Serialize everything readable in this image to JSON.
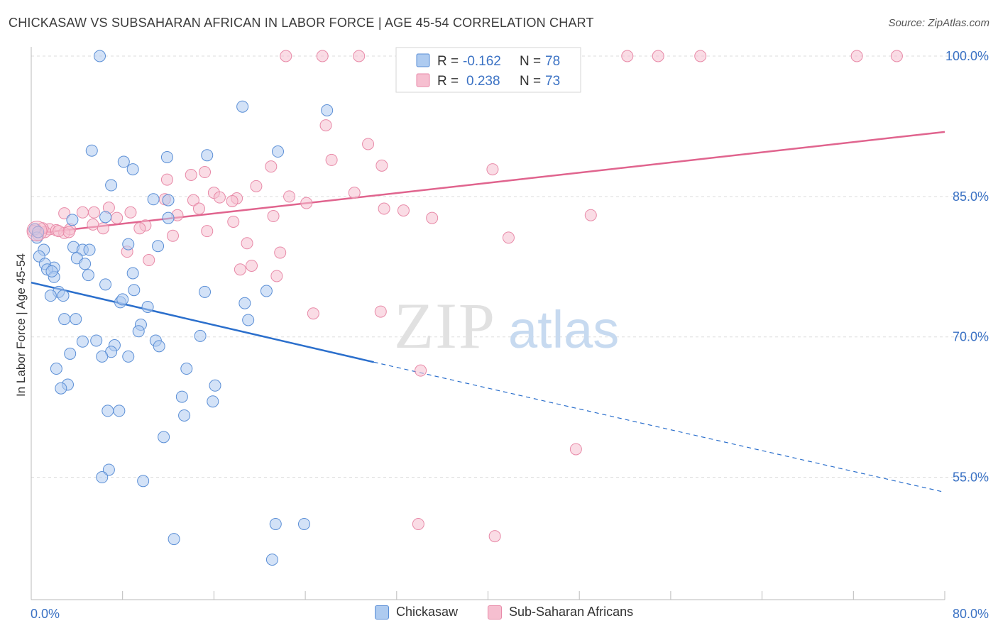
{
  "title": "CHICKASAW VS SUBSAHARAN AFRICAN IN LABOR FORCE | AGE 45-54 CORRELATION CHART",
  "source": "Source: ZipAtlas.com",
  "watermark": {
    "zip": "ZIP",
    "atlas": "atlas"
  },
  "colors": {
    "blue_fill": "#aecbf0",
    "blue_stroke": "#5b8fd6",
    "blue_line": "#2b6fcc",
    "pink_fill": "#f6bfd0",
    "pink_stroke": "#e88aa8",
    "pink_line": "#e0648e",
    "axis_text": "#3b72c4",
    "grid": "#dddddd"
  },
  "legend_top": {
    "rows": [
      {
        "r_label": "R = ",
        "r_value": "-0.162",
        "n_label": "N = ",
        "n_value": "78"
      },
      {
        "r_label": "R = ",
        "r_value": "0.238",
        "n_label": "N = ",
        "n_value": "73"
      }
    ]
  },
  "legend_bottom": {
    "items": [
      "Chickasaw",
      "Sub-Saharan Africans"
    ]
  },
  "chart_data": {
    "type": "scatter",
    "ylabel": "In Labor Force | Age 45-54",
    "xlim": [
      0,
      80
    ],
    "ylim": [
      42,
      100
    ],
    "x_tick_labels": [
      "0.0%",
      "80.0%"
    ],
    "y_ticks": [
      {
        "value": 100,
        "label": "100.0%"
      },
      {
        "value": 85,
        "label": "85.0%"
      },
      {
        "value": 70,
        "label": "70.0%"
      },
      {
        "value": 55,
        "label": "55.0%"
      }
    ],
    "grid": true,
    "series": [
      {
        "name": "Chickasaw",
        "color": "#aecbf0",
        "trend": {
          "x0": 0,
          "y0": 75.8,
          "x1": 30,
          "y1": 67.3,
          "dash_to_x": 80,
          "dash_to_y": 53.4
        },
        "points": [
          [
            6.0,
            100.0
          ],
          [
            18.5,
            94.6
          ],
          [
            25.9,
            94.2
          ],
          [
            5.3,
            89.9
          ],
          [
            8.1,
            88.7
          ],
          [
            11.9,
            89.2
          ],
          [
            15.4,
            89.4
          ],
          [
            21.6,
            89.8
          ],
          [
            8.9,
            87.9
          ],
          [
            7.0,
            86.2
          ],
          [
            10.7,
            84.7
          ],
          [
            12.0,
            84.6
          ],
          [
            12.0,
            82.7
          ],
          [
            3.6,
            82.5
          ],
          [
            0.3,
            81.5
          ],
          [
            0.5,
            80.6
          ],
          [
            8.5,
            79.9
          ],
          [
            11.1,
            79.7
          ],
          [
            3.7,
            79.6
          ],
          [
            4.5,
            79.3
          ],
          [
            5.1,
            79.3
          ],
          [
            1.1,
            79.3
          ],
          [
            0.7,
            78.6
          ],
          [
            4.0,
            78.4
          ],
          [
            1.2,
            77.8
          ],
          [
            2.0,
            77.4
          ],
          [
            1.4,
            77.2
          ],
          [
            4.7,
            77.8
          ],
          [
            2.0,
            76.4
          ],
          [
            5.0,
            76.6
          ],
          [
            8.9,
            76.8
          ],
          [
            6.5,
            75.6
          ],
          [
            9.0,
            75.0
          ],
          [
            15.2,
            74.8
          ],
          [
            20.6,
            74.9
          ],
          [
            2.4,
            74.8
          ],
          [
            2.8,
            74.4
          ],
          [
            1.7,
            74.4
          ],
          [
            7.8,
            73.7
          ],
          [
            8.0,
            74.0
          ],
          [
            18.7,
            73.6
          ],
          [
            10.2,
            73.2
          ],
          [
            3.9,
            71.9
          ],
          [
            2.9,
            71.9
          ],
          [
            9.6,
            71.3
          ],
          [
            19.0,
            71.8
          ],
          [
            14.8,
            70.1
          ],
          [
            9.4,
            70.6
          ],
          [
            10.9,
            69.6
          ],
          [
            11.2,
            69.0
          ],
          [
            4.5,
            69.5
          ],
          [
            7.3,
            69.1
          ],
          [
            5.7,
            69.6
          ],
          [
            7.0,
            68.4
          ],
          [
            3.4,
            68.2
          ],
          [
            6.2,
            67.9
          ],
          [
            8.5,
            67.9
          ],
          [
            2.2,
            66.6
          ],
          [
            13.6,
            66.6
          ],
          [
            3.2,
            64.9
          ],
          [
            16.1,
            64.8
          ],
          [
            2.6,
            64.5
          ],
          [
            13.2,
            63.6
          ],
          [
            15.9,
            63.1
          ],
          [
            6.7,
            62.1
          ],
          [
            7.7,
            62.1
          ],
          [
            13.4,
            61.6
          ],
          [
            11.6,
            59.3
          ],
          [
            6.8,
            55.8
          ],
          [
            6.2,
            55.0
          ],
          [
            9.8,
            54.6
          ],
          [
            21.4,
            50.0
          ],
          [
            23.9,
            50.0
          ],
          [
            12.5,
            48.4
          ],
          [
            21.1,
            46.2
          ],
          [
            0.6,
            81.2
          ],
          [
            1.8,
            77.0
          ],
          [
            6.5,
            82.8
          ]
        ]
      },
      {
        "name": "Sub-Saharan Africans",
        "color": "#f6bfd0",
        "trend": {
          "x0": 0,
          "y0": 81.0,
          "x1": 80,
          "y1": 91.9
        },
        "points": [
          [
            22.3,
            100.0
          ],
          [
            25.5,
            100.0
          ],
          [
            28.7,
            100.0
          ],
          [
            43.1,
            100.0
          ],
          [
            52.2,
            100.0
          ],
          [
            54.9,
            100.0
          ],
          [
            58.6,
            100.0
          ],
          [
            72.3,
            100.0
          ],
          [
            75.8,
            100.0
          ],
          [
            25.8,
            92.6
          ],
          [
            29.5,
            90.6
          ],
          [
            26.3,
            88.9
          ],
          [
            30.7,
            88.3
          ],
          [
            21.0,
            88.2
          ],
          [
            40.4,
            87.9
          ],
          [
            15.2,
            87.6
          ],
          [
            14.0,
            87.3
          ],
          [
            11.9,
            86.8
          ],
          [
            19.7,
            86.1
          ],
          [
            16.0,
            85.4
          ],
          [
            28.3,
            85.4
          ],
          [
            14.2,
            84.6
          ],
          [
            16.5,
            84.9
          ],
          [
            18.0,
            84.8
          ],
          [
            22.6,
            85.0
          ],
          [
            17.6,
            84.5
          ],
          [
            24.1,
            84.3
          ],
          [
            11.7,
            84.7
          ],
          [
            14.7,
            83.7
          ],
          [
            6.8,
            83.8
          ],
          [
            30.9,
            83.7
          ],
          [
            32.6,
            83.5
          ],
          [
            8.7,
            83.3
          ],
          [
            4.5,
            83.3
          ],
          [
            5.5,
            83.3
          ],
          [
            2.9,
            83.2
          ],
          [
            12.8,
            83.0
          ],
          [
            21.2,
            82.9
          ],
          [
            49.0,
            83.0
          ],
          [
            7.5,
            82.7
          ],
          [
            35.1,
            82.7
          ],
          [
            17.7,
            82.3
          ],
          [
            5.4,
            82.0
          ],
          [
            10.0,
            81.9
          ],
          [
            9.5,
            81.6
          ],
          [
            6.3,
            81.6
          ],
          [
            3.4,
            81.5
          ],
          [
            1.6,
            81.5
          ],
          [
            2.2,
            81.4
          ],
          [
            2.9,
            81.1
          ],
          [
            2.4,
            81.3
          ],
          [
            15.4,
            81.3
          ],
          [
            1.2,
            81.2
          ],
          [
            1.0,
            81.6
          ],
          [
            0.4,
            81.5
          ],
          [
            0.2,
            81.3
          ],
          [
            0.6,
            80.9
          ],
          [
            12.4,
            80.8
          ],
          [
            41.8,
            80.6
          ],
          [
            18.9,
            80.0
          ],
          [
            8.4,
            79.1
          ],
          [
            21.8,
            79.0
          ],
          [
            10.3,
            78.2
          ],
          [
            19.3,
            77.6
          ],
          [
            18.3,
            77.2
          ],
          [
            21.5,
            76.5
          ],
          [
            24.7,
            72.5
          ],
          [
            30.6,
            72.7
          ],
          [
            34.1,
            66.4
          ],
          [
            47.7,
            58.0
          ],
          [
            33.9,
            50.0
          ],
          [
            40.6,
            48.7
          ],
          [
            3.3,
            81.2
          ]
        ]
      }
    ]
  }
}
